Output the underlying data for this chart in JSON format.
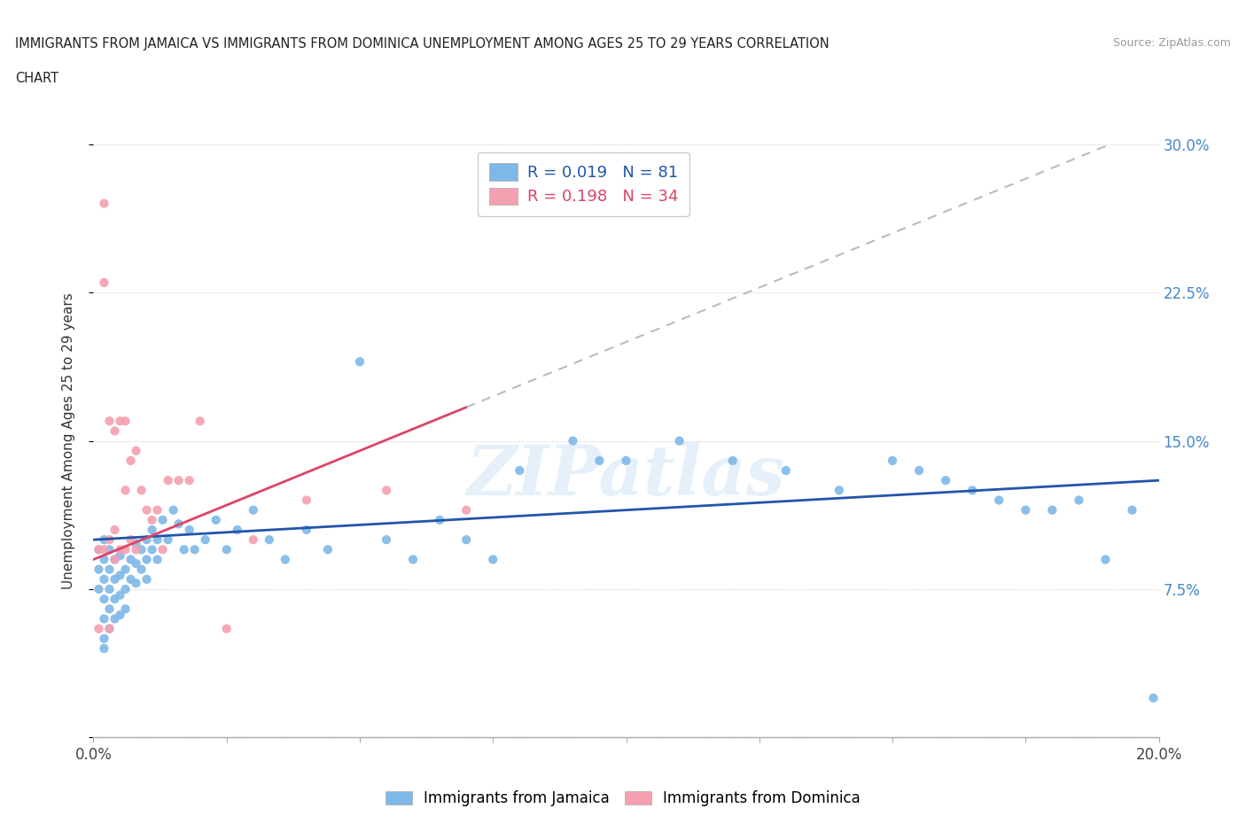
{
  "title_line1": "IMMIGRANTS FROM JAMAICA VS IMMIGRANTS FROM DOMINICA UNEMPLOYMENT AMONG AGES 25 TO 29 YEARS CORRELATION",
  "title_line2": "CHART",
  "source": "Source: ZipAtlas.com",
  "xlabel": "Immigrants from Jamaica",
  "ylabel": "Unemployment Among Ages 25 to 29 years",
  "xlim": [
    0.0,
    0.2
  ],
  "ylim": [
    0.0,
    0.3
  ],
  "yticks": [
    0.0,
    0.075,
    0.15,
    0.225,
    0.3
  ],
  "ytick_labels": [
    "",
    "7.5%",
    "15.0%",
    "22.5%",
    "30.0%"
  ],
  "xticks": [
    0.0,
    0.025,
    0.05,
    0.075,
    0.1,
    0.125,
    0.15,
    0.175,
    0.2
  ],
  "jamaica_color": "#7eb8e8",
  "dominica_color": "#f4a0b0",
  "trend_jamaica_color": "#2255aa",
  "trend_dominica_color": "#dd4466",
  "trend_dashed_color": "#bbbbbb",
  "R_jamaica": 0.019,
  "N_jamaica": 81,
  "R_dominica": 0.198,
  "N_dominica": 34,
  "watermark": "ZIPatlas",
  "jamaica_x": [
    0.001,
    0.001,
    0.001,
    0.002,
    0.002,
    0.002,
    0.002,
    0.002,
    0.002,
    0.002,
    0.003,
    0.003,
    0.003,
    0.003,
    0.003,
    0.004,
    0.004,
    0.004,
    0.004,
    0.005,
    0.005,
    0.005,
    0.005,
    0.006,
    0.006,
    0.006,
    0.007,
    0.007,
    0.008,
    0.008,
    0.008,
    0.009,
    0.009,
    0.01,
    0.01,
    0.01,
    0.011,
    0.011,
    0.012,
    0.012,
    0.013,
    0.014,
    0.015,
    0.016,
    0.017,
    0.018,
    0.019,
    0.021,
    0.023,
    0.025,
    0.027,
    0.03,
    0.033,
    0.036,
    0.04,
    0.044,
    0.05,
    0.055,
    0.06,
    0.065,
    0.07,
    0.075,
    0.08,
    0.09,
    0.095,
    0.1,
    0.11,
    0.12,
    0.13,
    0.14,
    0.15,
    0.155,
    0.16,
    0.165,
    0.17,
    0.175,
    0.18,
    0.185,
    0.19,
    0.195,
    0.199
  ],
  "jamaica_y": [
    0.095,
    0.085,
    0.075,
    0.1,
    0.09,
    0.08,
    0.07,
    0.06,
    0.05,
    0.045,
    0.095,
    0.085,
    0.075,
    0.065,
    0.055,
    0.09,
    0.08,
    0.07,
    0.06,
    0.092,
    0.082,
    0.072,
    0.062,
    0.085,
    0.075,
    0.065,
    0.09,
    0.08,
    0.098,
    0.088,
    0.078,
    0.095,
    0.085,
    0.1,
    0.09,
    0.08,
    0.105,
    0.095,
    0.1,
    0.09,
    0.11,
    0.1,
    0.115,
    0.108,
    0.095,
    0.105,
    0.095,
    0.1,
    0.11,
    0.095,
    0.105,
    0.115,
    0.1,
    0.09,
    0.105,
    0.095,
    0.19,
    0.1,
    0.09,
    0.11,
    0.1,
    0.09,
    0.135,
    0.15,
    0.14,
    0.14,
    0.15,
    0.14,
    0.135,
    0.125,
    0.14,
    0.135,
    0.13,
    0.125,
    0.12,
    0.115,
    0.115,
    0.12,
    0.09,
    0.115,
    0.02
  ],
  "dominica_x": [
    0.001,
    0.001,
    0.002,
    0.002,
    0.002,
    0.003,
    0.003,
    0.003,
    0.004,
    0.004,
    0.004,
    0.005,
    0.005,
    0.006,
    0.006,
    0.006,
    0.007,
    0.007,
    0.008,
    0.008,
    0.009,
    0.01,
    0.011,
    0.012,
    0.013,
    0.014,
    0.016,
    0.018,
    0.02,
    0.025,
    0.03,
    0.04,
    0.055,
    0.07
  ],
  "dominica_y": [
    0.095,
    0.055,
    0.27,
    0.23,
    0.095,
    0.16,
    0.1,
    0.055,
    0.155,
    0.105,
    0.09,
    0.16,
    0.095,
    0.16,
    0.125,
    0.095,
    0.14,
    0.1,
    0.145,
    0.095,
    0.125,
    0.115,
    0.11,
    0.115,
    0.095,
    0.13,
    0.13,
    0.13,
    0.16,
    0.055,
    0.1,
    0.12,
    0.125,
    0.115
  ],
  "trend_jamaica_intercept": 0.1,
  "trend_jamaica_slope": 0.15,
  "trend_dominica_intercept": 0.09,
  "trend_dominica_slope": 1.1
}
